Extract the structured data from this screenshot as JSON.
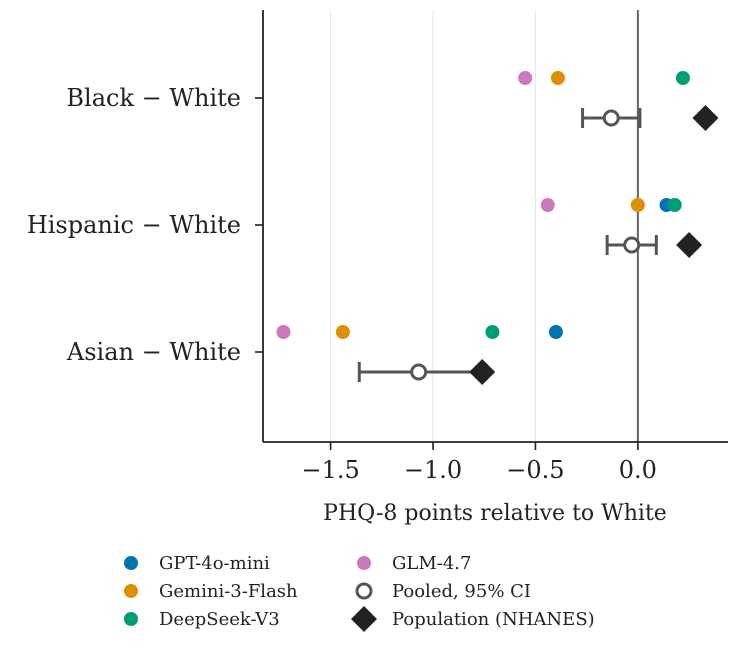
{
  "chart_data": {
    "type": "scatter",
    "xlabel": "PHQ-8 points relative to White",
    "xlim": [
      -1.83,
      0.44
    ],
    "x_ticks": [
      {
        "value": -1.5,
        "label": "−1.5"
      },
      {
        "value": -1.0,
        "label": "−1.0"
      },
      {
        "value": -0.5,
        "label": "−0.5"
      },
      {
        "value": 0.0,
        "label": "0.0"
      }
    ],
    "grid": "vertical",
    "reference_line": 0.0,
    "categories": [
      "Black − White",
      "Hispanic − White",
      "Asian − White"
    ],
    "series": [
      {
        "name": "GPT-4o-mini",
        "color": "#0173b2",
        "marker": "circle",
        "values": [
          null,
          0.14,
          -0.4
        ]
      },
      {
        "name": "Gemini-3-Flash",
        "color": "#de8f05",
        "marker": "circle",
        "values": [
          -0.39,
          0.0,
          -1.44
        ]
      },
      {
        "name": "DeepSeek-V3",
        "color": "#029e73",
        "marker": "circle",
        "values": [
          0.22,
          0.18,
          -0.71
        ]
      },
      {
        "name": "GLM-4.7",
        "color": "#cc78bc",
        "marker": "circle",
        "values": [
          -0.55,
          -0.44,
          -1.73
        ]
      }
    ],
    "pooled": {
      "name": "Pooled, 95% CI",
      "color": "#555555",
      "marker": "open-circle",
      "values": [
        -0.13,
        -0.03,
        -1.07
      ],
      "ci_low": [
        -0.27,
        -0.15,
        -1.36
      ],
      "ci_high": [
        0.01,
        0.09,
        -0.76
      ]
    },
    "population": {
      "name": "Population (NHANES)",
      "color": "#222222",
      "marker": "diamond",
      "values": [
        0.33,
        0.25,
        -0.76
      ]
    },
    "legend_position": "bottom"
  }
}
